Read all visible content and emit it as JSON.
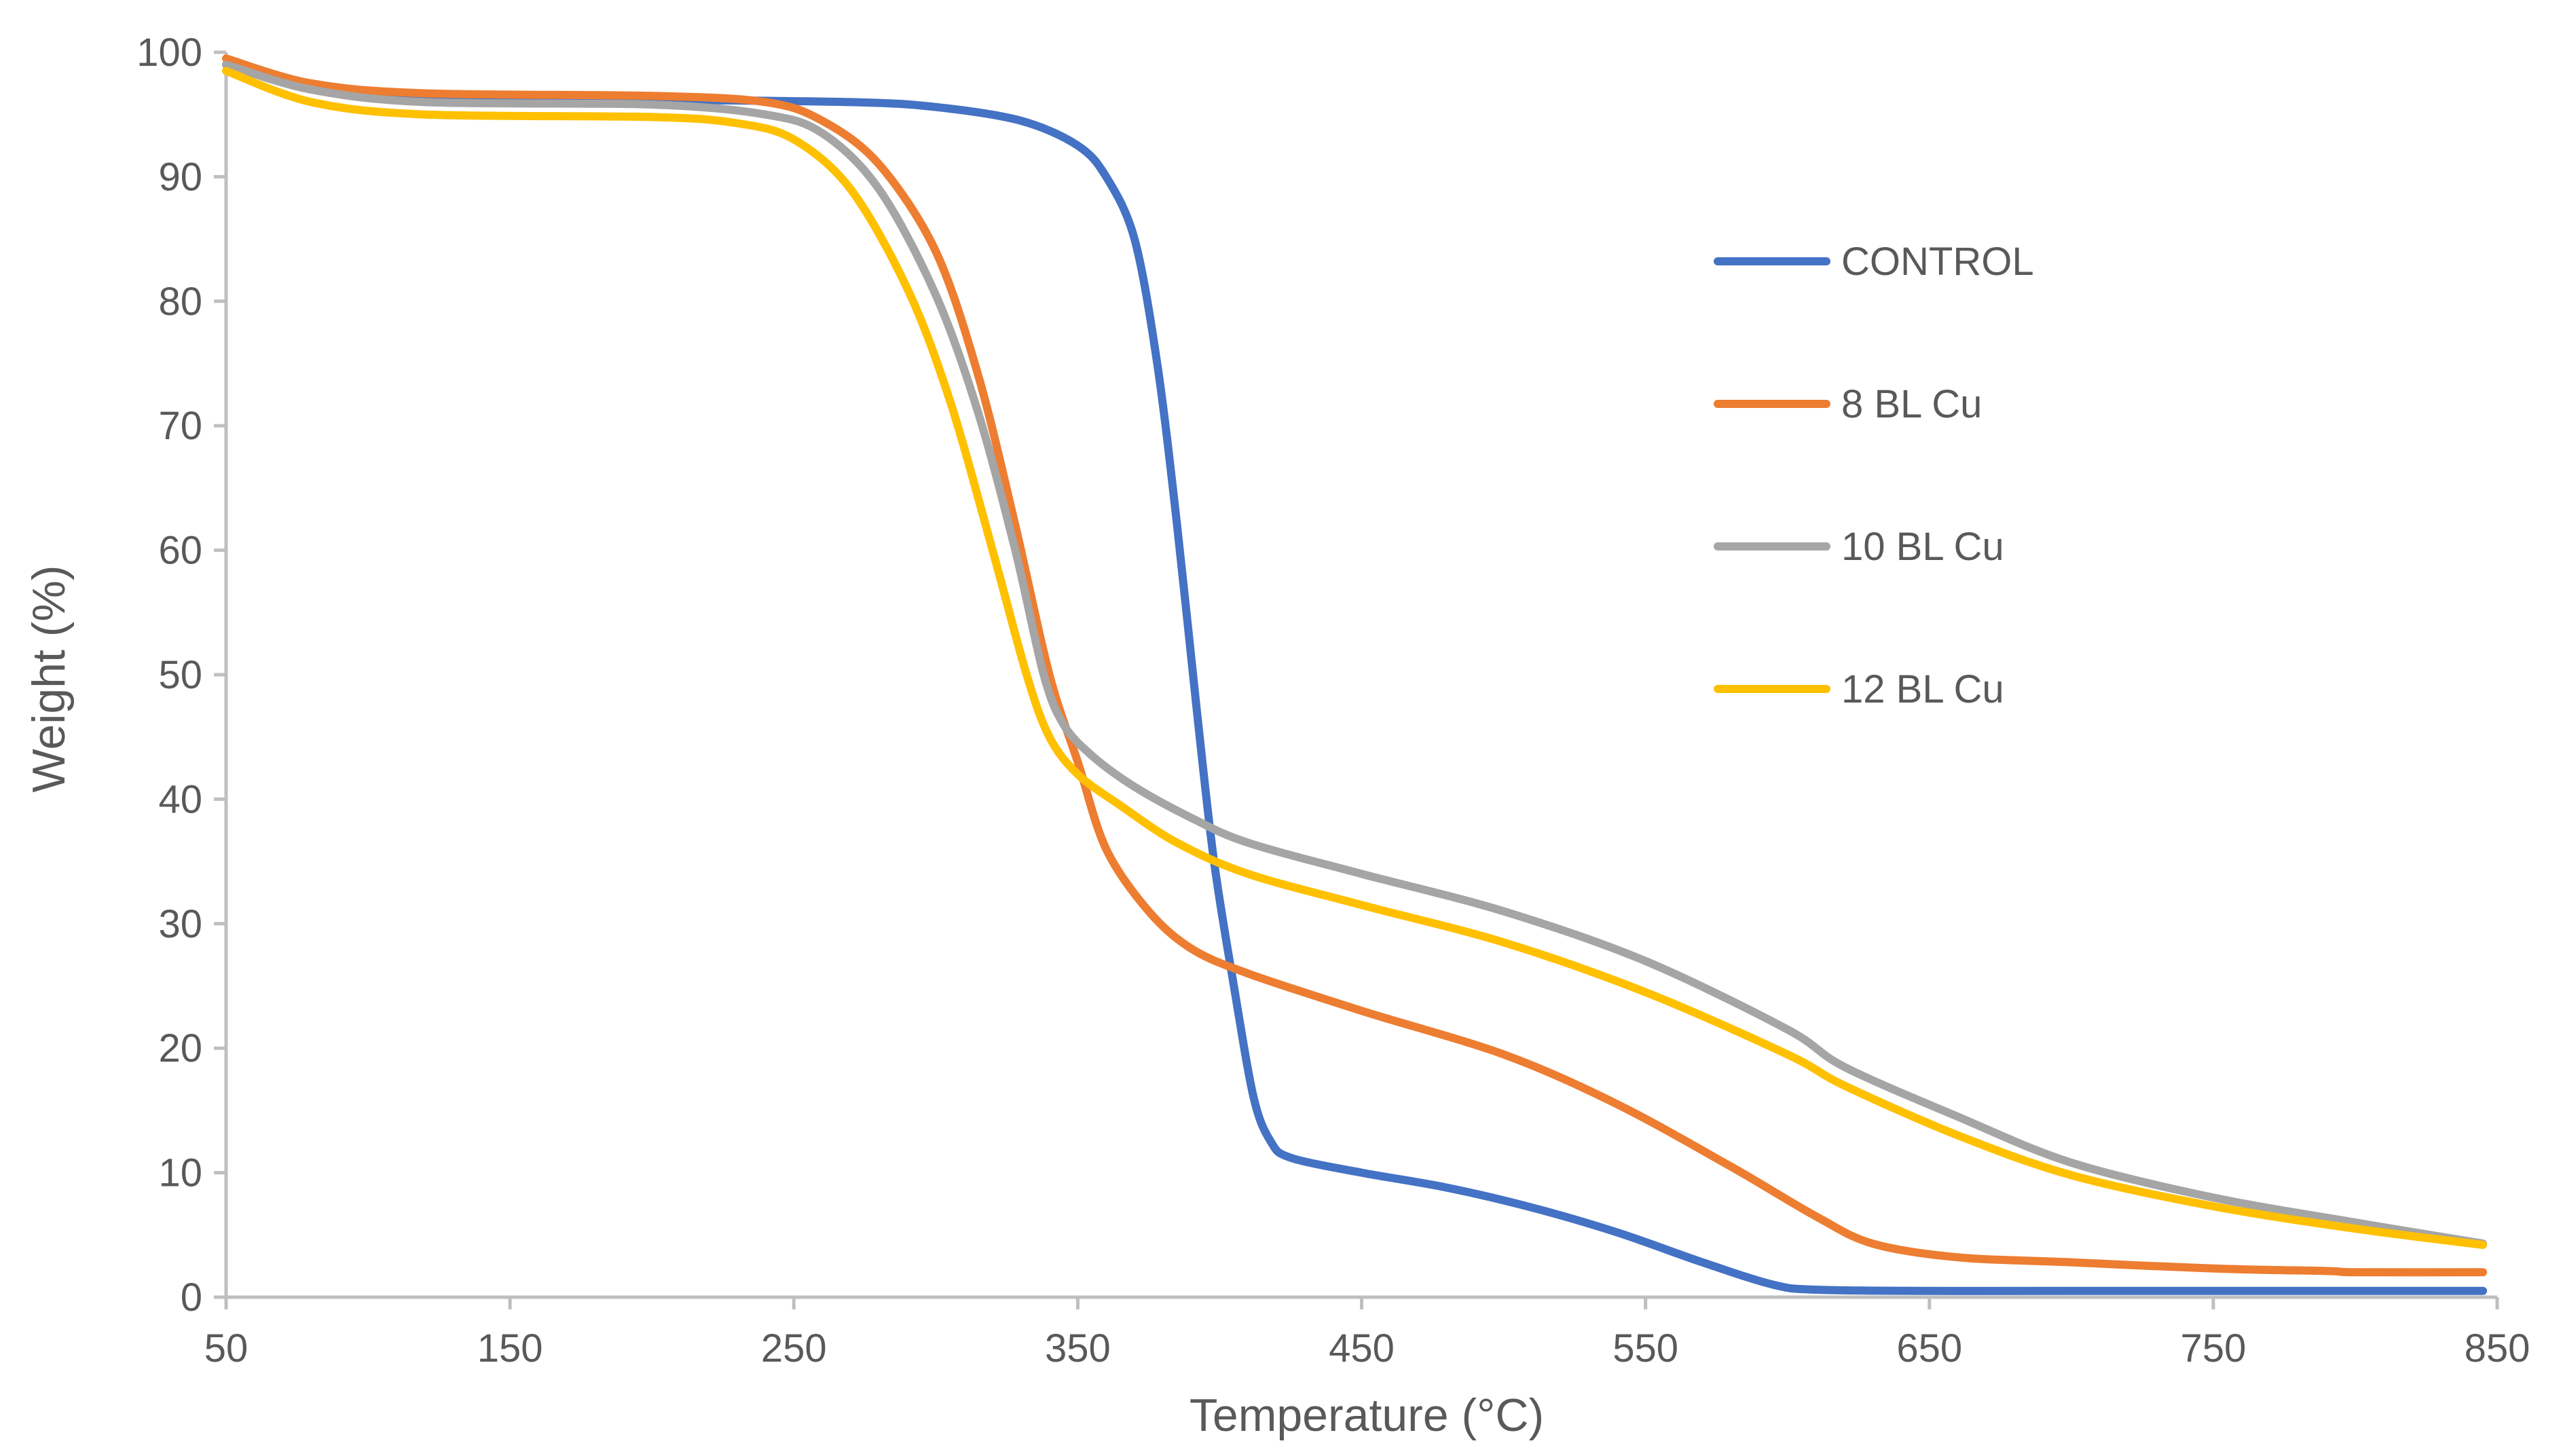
{
  "chart_data": {
    "type": "line",
    "title": "",
    "xlabel": "Temperature (°C)",
    "ylabel": "Weight (%)",
    "xlim": [
      50,
      850
    ],
    "ylim": [
      0,
      100
    ],
    "x_ticks": [
      "50",
      "150",
      "250",
      "350",
      "450",
      "550",
      "650",
      "750",
      "850"
    ],
    "y_ticks": [
      "0",
      "10",
      "20",
      "30",
      "40",
      "50",
      "60",
      "70",
      "80",
      "90",
      "100"
    ],
    "grid": false,
    "legend_position": "right",
    "series": [
      {
        "name": "CONTROL",
        "color": "#4472C4",
        "points": [
          [
            50,
            99
          ],
          [
            80,
            97.5
          ],
          [
            120,
            96.5
          ],
          [
            200,
            96.2
          ],
          [
            270,
            96
          ],
          [
            300,
            95.6
          ],
          [
            330,
            94.5
          ],
          [
            350,
            92.5
          ],
          [
            360,
            90
          ],
          [
            370,
            85
          ],
          [
            378,
            75
          ],
          [
            385,
            62
          ],
          [
            392,
            47
          ],
          [
            398,
            35
          ],
          [
            405,
            25
          ],
          [
            412,
            16
          ],
          [
            418,
            12.5
          ],
          [
            425,
            11.2
          ],
          [
            450,
            10
          ],
          [
            480,
            8.8
          ],
          [
            510,
            7.2
          ],
          [
            540,
            5.2
          ],
          [
            570,
            2.8
          ],
          [
            595,
            1
          ],
          [
            610,
            0.6
          ],
          [
            650,
            0.5
          ],
          [
            700,
            0.5
          ],
          [
            800,
            0.5
          ],
          [
            845,
            0.5
          ]
        ]
      },
      {
        "name": "8 BL Cu",
        "color": "#ED7D31",
        "points": [
          [
            50,
            99.5
          ],
          [
            80,
            97.5
          ],
          [
            120,
            96.7
          ],
          [
            200,
            96.5
          ],
          [
            240,
            96
          ],
          [
            260,
            94.5
          ],
          [
            280,
            91
          ],
          [
            300,
            84
          ],
          [
            315,
            74
          ],
          [
            328,
            62
          ],
          [
            340,
            50
          ],
          [
            350,
            43
          ],
          [
            360,
            36
          ],
          [
            375,
            31
          ],
          [
            390,
            28
          ],
          [
            410,
            26
          ],
          [
            450,
            23
          ],
          [
            500,
            19.5
          ],
          [
            540,
            15.5
          ],
          [
            580,
            10.5
          ],
          [
            610,
            6.5
          ],
          [
            630,
            4.3
          ],
          [
            660,
            3.2
          ],
          [
            700,
            2.8
          ],
          [
            750,
            2.3
          ],
          [
            790,
            2.1
          ],
          [
            800,
            2
          ],
          [
            845,
            2
          ]
        ]
      },
      {
        "name": "10 BL Cu",
        "color": "#A5A5A5",
        "points": [
          [
            50,
            99
          ],
          [
            80,
            97
          ],
          [
            120,
            96
          ],
          [
            200,
            95.8
          ],
          [
            240,
            95
          ],
          [
            260,
            93.5
          ],
          [
            280,
            89
          ],
          [
            300,
            80.5
          ],
          [
            315,
            71
          ],
          [
            328,
            60
          ],
          [
            338,
            50
          ],
          [
            345,
            46
          ],
          [
            355,
            43.5
          ],
          [
            370,
            41
          ],
          [
            390,
            38.5
          ],
          [
            410,
            36.5
          ],
          [
            450,
            34
          ],
          [
            500,
            31
          ],
          [
            550,
            27
          ],
          [
            600,
            21.5
          ],
          [
            620,
            18.5
          ],
          [
            660,
            14.5
          ],
          [
            700,
            10.8
          ],
          [
            750,
            8
          ],
          [
            800,
            6
          ],
          [
            845,
            4.3
          ]
        ]
      },
      {
        "name": "12 BL Cu",
        "color": "#FFC000",
        "points": [
          [
            50,
            98.5
          ],
          [
            80,
            96
          ],
          [
            120,
            95
          ],
          [
            200,
            94.8
          ],
          [
            230,
            94.3
          ],
          [
            250,
            93
          ],
          [
            270,
            89
          ],
          [
            290,
            81
          ],
          [
            305,
            72
          ],
          [
            320,
            60
          ],
          [
            332,
            50
          ],
          [
            340,
            45
          ],
          [
            350,
            42
          ],
          [
            365,
            39.5
          ],
          [
            385,
            36.5
          ],
          [
            410,
            34
          ],
          [
            450,
            31.5
          ],
          [
            500,
            28.5
          ],
          [
            550,
            24.5
          ],
          [
            600,
            19.5
          ],
          [
            620,
            17
          ],
          [
            660,
            13
          ],
          [
            700,
            9.8
          ],
          [
            750,
            7.3
          ],
          [
            800,
            5.5
          ],
          [
            845,
            4.2
          ]
        ]
      }
    ]
  }
}
